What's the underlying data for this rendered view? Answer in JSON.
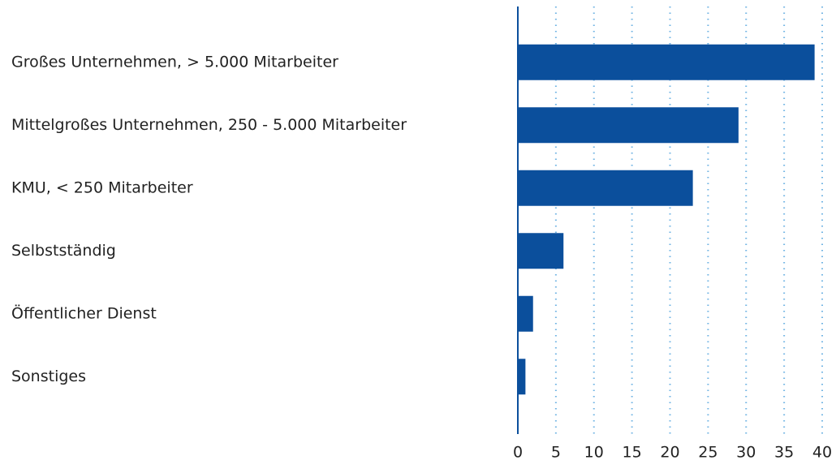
{
  "chart_data": {
    "type": "bar",
    "orientation": "horizontal",
    "categories": [
      "Großes Unternehmen, > 5.000 Mitarbeiter",
      "Mittelgroßes Unternehmen, 250 - 5.000 Mitarbeiter",
      "KMU, < 250 Mitarbeiter",
      "Selbstständig",
      "Öffentlicher Dienst",
      "Sonstiges"
    ],
    "values": [
      39,
      29,
      23,
      6,
      2,
      1
    ],
    "color": "#0b4f9c",
    "xlim": [
      0,
      40
    ],
    "xticks": [
      0,
      5,
      10,
      15,
      20,
      25,
      30,
      35,
      40
    ],
    "grid": true
  }
}
